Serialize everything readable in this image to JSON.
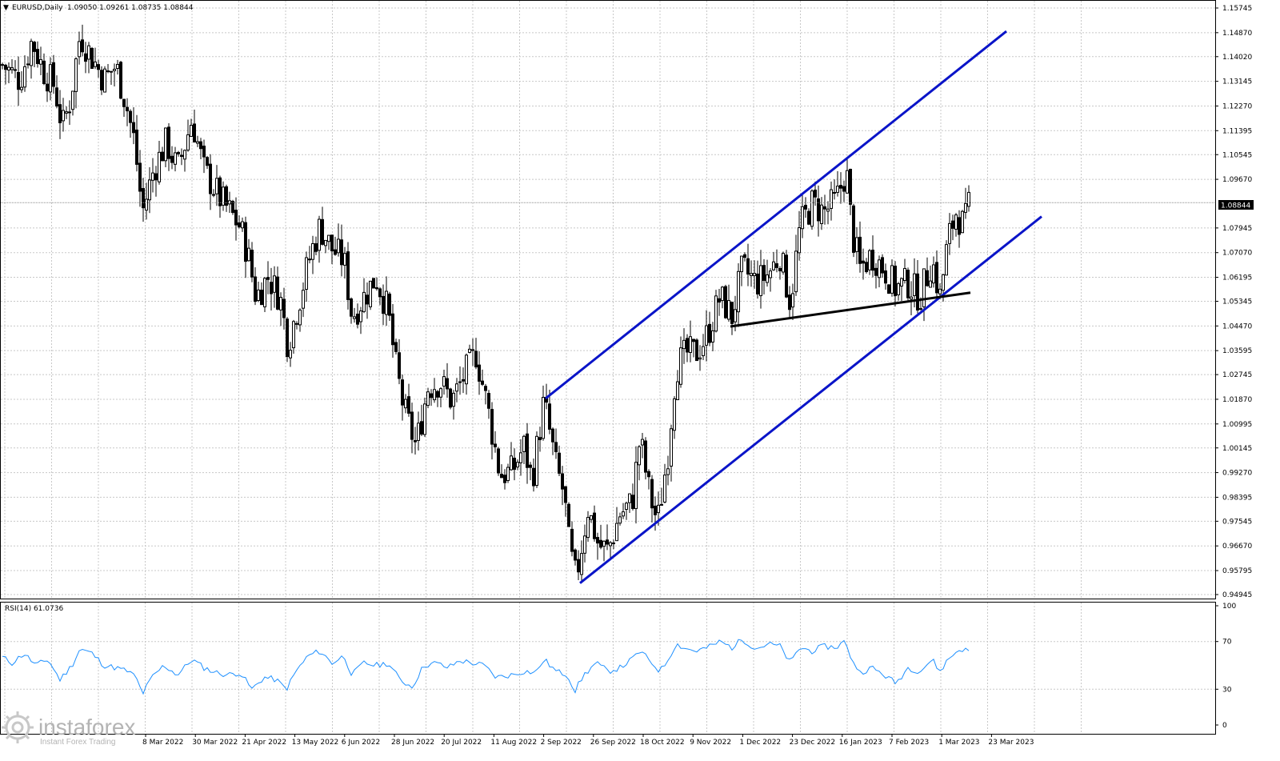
{
  "header": {
    "symbol": "EURUSD,Daily",
    "ohlc": "1.09050 1.09261 1.08735 1.08844"
  },
  "current_price_label": "1.08844",
  "rsi": {
    "label": "RSI(14) 61.0736",
    "levels": [
      "100",
      "70",
      "30",
      "0"
    ]
  },
  "watermark": {
    "brand": "instaforex",
    "tagline": "Instant Forex Trading"
  },
  "chart_data": {
    "type": "candlestick",
    "title": "",
    "price_ticks": [
      "1.15745",
      "1.14870",
      "1.14020",
      "1.13145",
      "1.12270",
      "1.11395",
      "1.10545",
      "1.09670",
      "1.08844",
      "1.07945",
      "1.07070",
      "1.06195",
      "1.05345",
      "1.04470",
      "1.03595",
      "1.02745",
      "1.01870",
      "1.00995",
      "1.00145",
      "0.99270",
      "0.98395",
      "0.97545",
      "0.96670",
      "0.95795",
      "0.94945"
    ],
    "date_ticks": [
      "8 Mar 2022",
      "30 Mar 2022",
      "21 Apr 2022",
      "13 May 2022",
      "6 Jun 2022",
      "28 Jun 2022",
      "20 Jul 2022",
      "11 Aug 2022",
      "2 Sep 2022",
      "26 Sep 2022",
      "18 Oct 2022",
      "9 Nov 2022",
      "1 Dec 2022",
      "23 Dec 2022",
      "16 Jan 2023",
      "7 Feb 2023",
      "1 Mar 2023",
      "23 Mar 2023"
    ],
    "ylim": [
      0.9455,
      1.1595
    ],
    "grid": true,
    "last_price": 1.08844,
    "price_path": [
      [
        0,
        1.138
      ],
      [
        25,
        1.132
      ],
      [
        40,
        1.146
      ],
      [
        55,
        1.135
      ],
      [
        68,
        1.13
      ],
      [
        78,
        1.115
      ],
      [
        88,
        1.125
      ],
      [
        100,
        1.148
      ],
      [
        115,
        1.14
      ],
      [
        130,
        1.132
      ],
      [
        145,
        1.137
      ],
      [
        158,
        1.123
      ],
      [
        168,
        1.11
      ],
      [
        178,
        1.085
      ],
      [
        192,
        1.1
      ],
      [
        208,
        1.11
      ],
      [
        222,
        1.1
      ],
      [
        240,
        1.118
      ],
      [
        255,
        1.1
      ],
      [
        275,
        1.09
      ],
      [
        300,
        1.08
      ],
      [
        310,
        1.07
      ],
      [
        320,
        1.055
      ],
      [
        335,
        1.062
      ],
      [
        350,
        1.055
      ],
      [
        360,
        1.038
      ],
      [
        375,
        1.055
      ],
      [
        388,
        1.07
      ],
      [
        400,
        1.08
      ],
      [
        415,
        1.072
      ],
      [
        430,
        1.068
      ],
      [
        440,
        1.048
      ],
      [
        455,
        1.055
      ],
      [
        470,
        1.062
      ],
      [
        485,
        1.05
      ],
      [
        495,
        1.03
      ],
      [
        505,
        1.015
      ],
      [
        520,
        1.002
      ],
      [
        535,
        1.023
      ],
      [
        550,
        1.025
      ],
      [
        565,
        1.018
      ],
      [
        580,
        1.027
      ],
      [
        595,
        1.035
      ],
      [
        610,
        1.015
      ],
      [
        625,
        0.992
      ],
      [
        640,
        0.993
      ],
      [
        655,
        1.002
      ],
      [
        665,
        0.99
      ],
      [
        680,
        1.018
      ],
      [
        695,
        0.995
      ],
      [
        705,
        0.985
      ],
      [
        712,
        0.965
      ],
      [
        720,
        0.955
      ],
      [
        735,
        0.98
      ],
      [
        748,
        0.967
      ],
      [
        760,
        0.965
      ],
      [
        775,
        0.978
      ],
      [
        790,
        0.982
      ],
      [
        800,
        1.005
      ],
      [
        812,
        0.985
      ],
      [
        822,
        0.975
      ],
      [
        835,
        1.0
      ],
      [
        845,
        1.03
      ],
      [
        858,
        1.035
      ],
      [
        870,
        1.035
      ],
      [
        885,
        1.042
      ],
      [
        900,
        1.055
      ],
      [
        915,
        1.048
      ],
      [
        928,
        1.065
      ],
      [
        945,
        1.06
      ],
      [
        960,
        1.063
      ],
      [
        975,
        1.07
      ],
      [
        988,
        1.053
      ],
      [
        1000,
        1.08
      ],
      [
        1015,
        1.088
      ],
      [
        1030,
        1.085
      ],
      [
        1045,
        1.089
      ],
      [
        1058,
        1.1
      ],
      [
        1065,
        1.078
      ],
      [
        1075,
        1.065
      ],
      [
        1090,
        1.07
      ],
      [
        1105,
        1.065
      ],
      [
        1120,
        1.058
      ],
      [
        1135,
        1.06
      ],
      [
        1150,
        1.055
      ],
      [
        1165,
        1.068
      ],
      [
        1175,
        1.055
      ],
      [
        1185,
        1.075
      ],
      [
        1195,
        1.085
      ],
      [
        1205,
        1.08
      ],
      [
        1212,
        1.088
      ]
    ],
    "channel_upper": [
      [
        682,
        1.019
      ],
      [
        1258,
        1.1492
      ]
    ],
    "channel_lower": [
      [
        725,
        0.9535
      ],
      [
        1302,
        1.0835
      ]
    ],
    "support_line": [
      [
        913,
        1.0445
      ],
      [
        1213,
        1.0565
      ]
    ],
    "rsi_path": [
      [
        0,
        58
      ],
      [
        15,
        52
      ],
      [
        30,
        60
      ],
      [
        45,
        50
      ],
      [
        60,
        55
      ],
      [
        75,
        38
      ],
      [
        90,
        50
      ],
      [
        100,
        64
      ],
      [
        115,
        60
      ],
      [
        130,
        50
      ],
      [
        145,
        48
      ],
      [
        160,
        45
      ],
      [
        170,
        40
      ],
      [
        178,
        26
      ],
      [
        190,
        40
      ],
      [
        205,
        50
      ],
      [
        222,
        42
      ],
      [
        240,
        55
      ],
      [
        255,
        48
      ],
      [
        270,
        44
      ],
      [
        285,
        42
      ],
      [
        300,
        44
      ],
      [
        315,
        30
      ],
      [
        330,
        40
      ],
      [
        345,
        38
      ],
      [
        358,
        30
      ],
      [
        370,
        45
      ],
      [
        385,
        58
      ],
      [
        400,
        62
      ],
      [
        415,
        52
      ],
      [
        430,
        58
      ],
      [
        440,
        42
      ],
      [
        455,
        52
      ],
      [
        470,
        50
      ],
      [
        485,
        52
      ],
      [
        500,
        38
      ],
      [
        515,
        32
      ],
      [
        530,
        50
      ],
      [
        545,
        52
      ],
      [
        560,
        48
      ],
      [
        575,
        54
      ],
      [
        590,
        52
      ],
      [
        605,
        50
      ],
      [
        620,
        40
      ],
      [
        640,
        42
      ],
      [
        655,
        45
      ],
      [
        670,
        44
      ],
      [
        680,
        55
      ],
      [
        695,
        45
      ],
      [
        710,
        42
      ],
      [
        718,
        28
      ],
      [
        730,
        42
      ],
      [
        745,
        52
      ],
      [
        760,
        45
      ],
      [
        775,
        48
      ],
      [
        790,
        55
      ],
      [
        800,
        62
      ],
      [
        815,
        52
      ],
      [
        825,
        45
      ],
      [
        835,
        55
      ],
      [
        845,
        68
      ],
      [
        858,
        64
      ],
      [
        870,
        62
      ],
      [
        885,
        65
      ],
      [
        900,
        70
      ],
      [
        915,
        65
      ],
      [
        928,
        72
      ],
      [
        945,
        64
      ],
      [
        960,
        68
      ],
      [
        975,
        66
      ],
      [
        988,
        52
      ],
      [
        1000,
        65
      ],
      [
        1015,
        62
      ],
      [
        1030,
        66
      ],
      [
        1045,
        65
      ],
      [
        1055,
        70
      ],
      [
        1065,
        55
      ],
      [
        1075,
        44
      ],
      [
        1090,
        48
      ],
      [
        1105,
        42
      ],
      [
        1120,
        35
      ],
      [
        1135,
        48
      ],
      [
        1150,
        45
      ],
      [
        1165,
        55
      ],
      [
        1175,
        45
      ],
      [
        1185,
        55
      ],
      [
        1200,
        64
      ],
      [
        1212,
        62
      ]
    ]
  }
}
